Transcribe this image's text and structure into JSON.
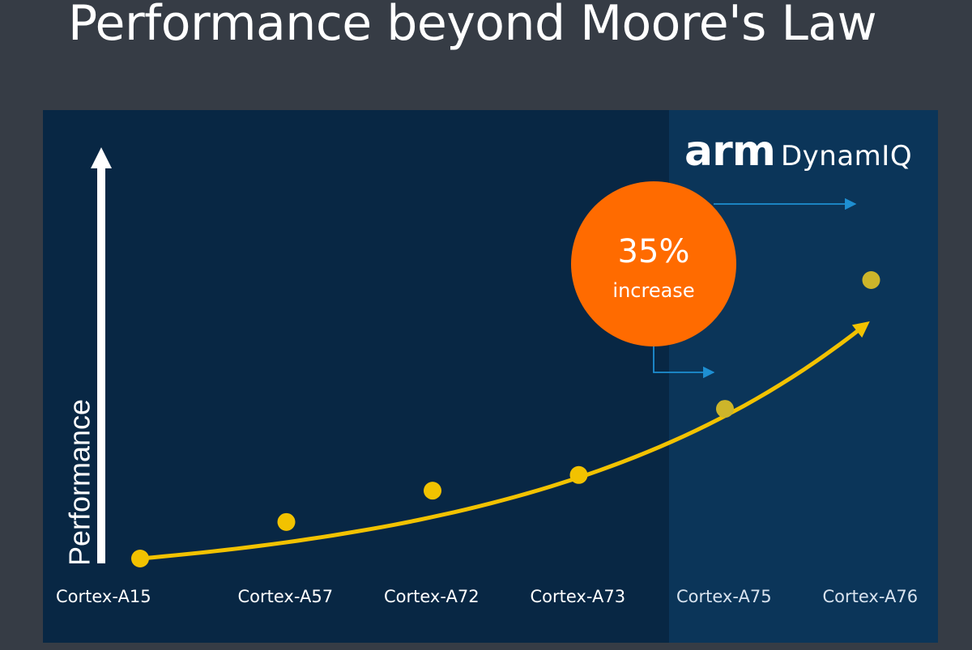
{
  "slide": {
    "title": "Performance beyond Moore's Law"
  },
  "brand": {
    "wordmark": "arm",
    "product": "DynamIQ"
  },
  "callout": {
    "value": "35%",
    "label": "increase"
  },
  "colors": {
    "background": "#363c45",
    "panel": "#082744",
    "dynamiq_region": "#0b3559",
    "points": "#f2c200",
    "trend": "#f2c200",
    "callout": "#ff6b00",
    "arrow": "#1e8fd2",
    "text": "#ffffff",
    "dynamiq_label": "#d8e3ef"
  },
  "chart_data": {
    "type": "scatter",
    "title": "Performance beyond Moore's Law",
    "xlabel": "",
    "ylabel": "Performance",
    "categories": [
      "Cortex-A15",
      "Cortex-A57",
      "Cortex-A72",
      "Cortex-A73",
      "Cortex-A75",
      "Cortex-A76"
    ],
    "dynamiq_categories": [
      "Cortex-A75",
      "Cortex-A76"
    ],
    "values": [
      0,
      10.5,
      19.5,
      24,
      43,
      80
    ],
    "trend_end_value": 67,
    "ylim": [
      0,
      100
    ],
    "y_ticks": "none",
    "grid": false,
    "annotations": [
      {
        "text": "35% increase",
        "from": "Cortex-A75",
        "to": "Cortex-A76"
      }
    ]
  }
}
